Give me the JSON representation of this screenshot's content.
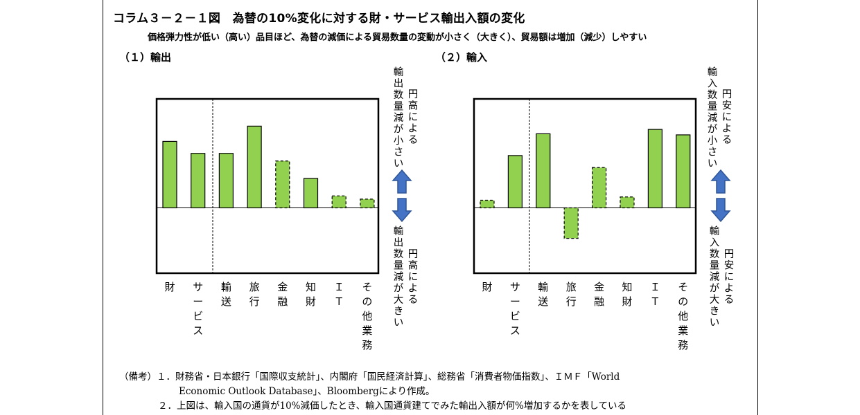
{
  "title": "コラム３－２－１図　為替の10%変化に対する財・サービス輸出入額の変化",
  "subtitle": "価格弾力性が低い（高い）品目ほど、為替の減価による貿易数量の変動が小さく（大きく）、貿易額は増加（減少）しやすい",
  "panels": [
    {
      "label": "（１）輸出"
    },
    {
      "label": "（２）輸入"
    }
  ],
  "footnotes": {
    "line1": "（備考）１．財務省・日本銀行「国際収支統計」、内閣府「国民経済計算」、総務省「消費者物価指数」、ＩＭＦ「World",
    "line2": "Economic Outlook Database」、Bloombergにより作成。",
    "line3": "２．上図は、輸入国の通貨が10%減価したとき、輸入国通貨建てでみた輸出入額が何%増加するかを表している"
  },
  "colors": {
    "bar_fill": "#92D050",
    "bar_stroke": "#000000",
    "arrow_fill": "#4472C4",
    "arrow_stroke": "#2F5597"
  },
  "chart_data": [
    {
      "type": "bar",
      "title": "（１）輸出",
      "ylabel": "(%)",
      "ylim": [
        -6,
        10
      ],
      "yticks": [
        "10",
        "8",
        "6",
        "4",
        "2",
        "0",
        "-2",
        "-4",
        "-6"
      ],
      "categories": [
        "財",
        "サービス",
        "輸送",
        "旅行",
        "金融",
        "知財",
        "ＩＴ",
        "その他業務"
      ],
      "values": [
        6.1,
        5.0,
        5.0,
        7.5,
        4.3,
        2.7,
        1.1,
        0.8
      ],
      "value_labels": [
        "6.1",
        "5.0",
        "5.0",
        "7.5",
        "4.3",
        "2.7",
        "1.1",
        "0.8"
      ],
      "significance": [
        "***",
        "***",
        "***",
        "***",
        "",
        "",
        "",
        ""
      ],
      "dashed_border": [
        false,
        false,
        false,
        false,
        true,
        false,
        true,
        true
      ],
      "annotations": {
        "upper_outer": "輸出数量減が小さい",
        "upper_inner": "円高による",
        "lower_outer": "輸出数量減が大きい",
        "lower_inner": "円高による"
      }
    },
    {
      "type": "bar",
      "title": "（２）輸入",
      "ylabel": "(%)",
      "ylim": [
        -6,
        10
      ],
      "yticks": [
        "10",
        "8",
        "6",
        "4",
        "2",
        "0",
        "-2",
        "-4",
        "-6"
      ],
      "categories": [
        "財",
        "サービス",
        "輸送",
        "旅行",
        "金融",
        "知財",
        "ＩＴ",
        "その他業務"
      ],
      "values": [
        0.7,
        4.8,
        6.8,
        -2.8,
        3.7,
        1.0,
        7.2,
        6.7
      ],
      "value_labels": [
        "0.7",
        "4.8",
        "6.8",
        "-2.8",
        "3.7",
        "1.0",
        "7.2",
        "6.7"
      ],
      "significance": [
        "",
        "***",
        "***",
        "",
        "",
        "",
        "*",
        "*"
      ],
      "dashed_border": [
        true,
        false,
        false,
        true,
        true,
        true,
        false,
        false
      ],
      "annotations": {
        "upper_outer": "輸入数量減が小さい",
        "upper_inner": "円安による",
        "lower_outer": "輸入数量減が大きい",
        "lower_inner": "円安による"
      }
    }
  ]
}
